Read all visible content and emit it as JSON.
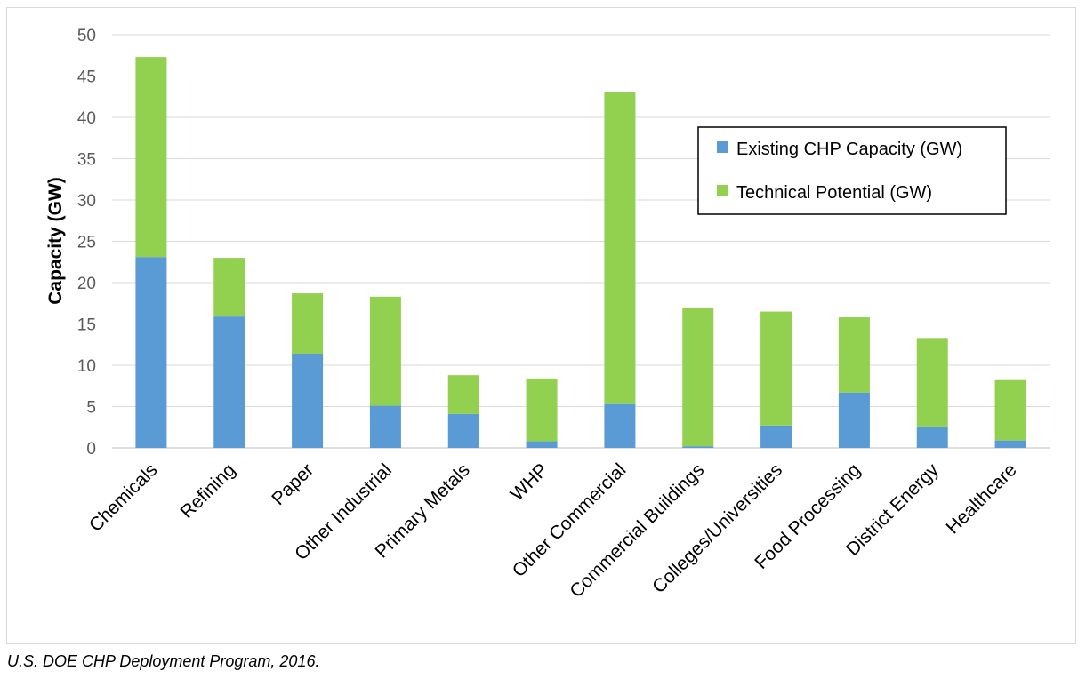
{
  "chart_data": {
    "type": "bar",
    "stacked": true,
    "ylabel": "Capacity (GW)",
    "xlabel": "",
    "ylim": [
      0,
      50
    ],
    "yticks": [
      0,
      5,
      10,
      15,
      20,
      25,
      30,
      35,
      40,
      45,
      50
    ],
    "grid": true,
    "legend_position": "top-right",
    "categories": [
      "Chemicals",
      "Refining",
      "Paper",
      "Other Industrial",
      "Primary Metals",
      "WHP",
      "Other Commercial",
      "Commercial Buildings",
      "Colleges/Universities",
      "Food Processing",
      "District Energy",
      "Healthcare"
    ],
    "series": [
      {
        "name": "Existing CHP Capacity (GW)",
        "color": "#5b9bd5",
        "values": [
          23.1,
          15.9,
          11.4,
          5.1,
          4.1,
          0.8,
          5.3,
          0.2,
          2.7,
          6.7,
          2.6,
          0.9
        ]
      },
      {
        "name": "Technical Potential (GW)",
        "color": "#92d050",
        "values": [
          24.2,
          7.1,
          7.3,
          13.2,
          4.7,
          7.6,
          37.8,
          16.7,
          13.8,
          9.1,
          10.7,
          7.3
        ]
      }
    ]
  },
  "source_note": "U.S. DOE CHP Deployment Program, 2016."
}
